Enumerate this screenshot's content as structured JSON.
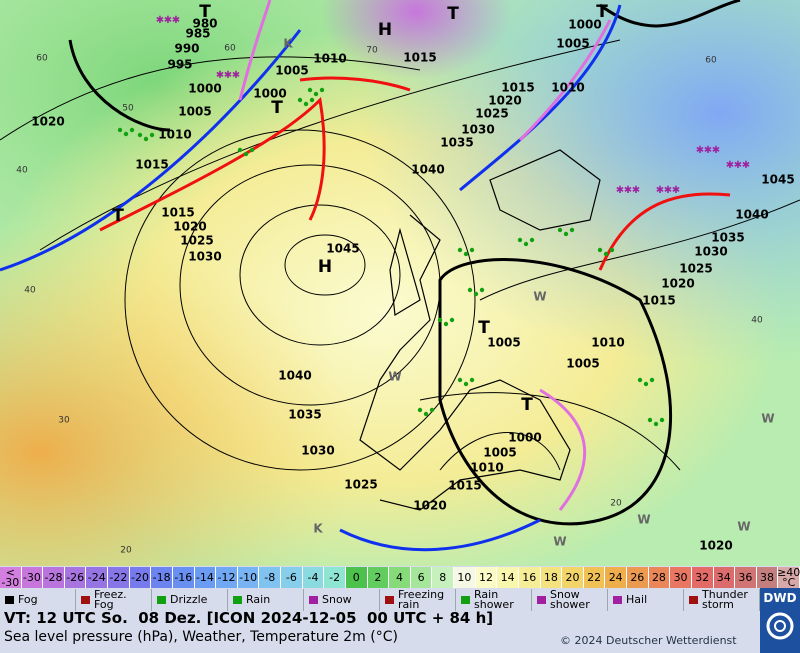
{
  "map": {
    "pressure_labels": [
      "980",
      "985",
      "990",
      "995",
      "1000",
      "1005",
      "1010",
      "1015",
      "1020",
      "1015",
      "1020",
      "1025",
      "1030",
      "1045",
      "1040",
      "1035",
      "1030",
      "1025",
      "1020",
      "1015",
      "1010",
      "1005",
      "1000",
      "1015",
      "1010",
      "1005",
      "1000",
      "1040",
      "1035",
      "1030",
      "1025",
      "1020",
      "1015",
      "1010",
      "1005",
      "1000",
      "1005",
      "1005",
      "1010",
      "1015",
      "1020",
      "1025",
      "1030",
      "1035",
      "1040",
      "1045",
      "1020"
    ],
    "centers": [
      "T",
      "T",
      "T",
      "H",
      "T",
      "T",
      "H",
      "T",
      "T",
      "K",
      "K",
      "W",
      "W",
      "W",
      "W",
      "W",
      "W"
    ],
    "temperature_labels": [
      "60",
      "50",
      "40",
      "40",
      "30",
      "20",
      "60",
      "40",
      "20",
      "70",
      "60"
    ]
  },
  "colorbar": [
    {
      "label": "< -30",
      "color": "#d27fe0"
    },
    {
      "label": "-30",
      "color": "#c777dc"
    },
    {
      "label": "-28",
      "color": "#b975dd"
    },
    {
      "label": "-26",
      "color": "#a874e0"
    },
    {
      "label": "-24",
      "color": "#9774e4"
    },
    {
      "label": "-22",
      "color": "#8676e8"
    },
    {
      "label": "-20",
      "color": "#767aec"
    },
    {
      "label": "-18",
      "color": "#6c84f0"
    },
    {
      "label": "-16",
      "color": "#6890f2"
    },
    {
      "label": "-14",
      "color": "#6a9cf4"
    },
    {
      "label": "-12",
      "color": "#70a8f4"
    },
    {
      "label": "-10",
      "color": "#78b4f4"
    },
    {
      "label": "-8",
      "color": "#80c2f0"
    },
    {
      "label": "-6",
      "color": "#86ceea"
    },
    {
      "label": "-4",
      "color": "#8adae0"
    },
    {
      "label": "-2",
      "color": "#8ee6d2"
    },
    {
      "label": "0",
      "color": "#4cc24c"
    },
    {
      "label": "2",
      "color": "#62cc5e"
    },
    {
      "label": "4",
      "color": "#86da7a"
    },
    {
      "label": "6",
      "color": "#a6e69a"
    },
    {
      "label": "8",
      "color": "#c6f0bc"
    },
    {
      "label": "10",
      "color": "#f4f8e4"
    },
    {
      "label": "12",
      "color": "#fbfbc8"
    },
    {
      "label": "14",
      "color": "#f9f6ae"
    },
    {
      "label": "16",
      "color": "#f6ee96"
    },
    {
      "label": "18",
      "color": "#f4e27e"
    },
    {
      "label": "20",
      "color": "#f2d468"
    },
    {
      "label": "22",
      "color": "#f0c256"
    },
    {
      "label": "24",
      "color": "#eeae4c"
    },
    {
      "label": "26",
      "color": "#ec9a50"
    },
    {
      "label": "28",
      "color": "#ea8658"
    },
    {
      "label": "30",
      "color": "#e87662"
    },
    {
      "label": "32",
      "color": "#e46a68"
    },
    {
      "label": "34",
      "color": "#dc6c6c"
    },
    {
      "label": "36",
      "color": "#d07474"
    },
    {
      "label": "38",
      "color": "#c47e7e"
    },
    {
      "label": "≥40 °C",
      "color": "#d8a8a8"
    }
  ],
  "legend": [
    "Fog",
    "Freez. Fog",
    "Drizzle",
    "Rain",
    "Snow",
    "Freezing rain",
    "Rain shower",
    "Snow shower",
    "Hail",
    "Thunder storm"
  ],
  "footer": {
    "valid_time": "VT: 12 UTC So.  08 Dez. [ICON 2024-12-05  00 UTC + 84 h]",
    "description": "Sea level pressure (hPa), Weather, Temperature 2m (°C)",
    "copyright": "© 2024 Deutscher Wetterdienst",
    "logo": "DWD"
  }
}
